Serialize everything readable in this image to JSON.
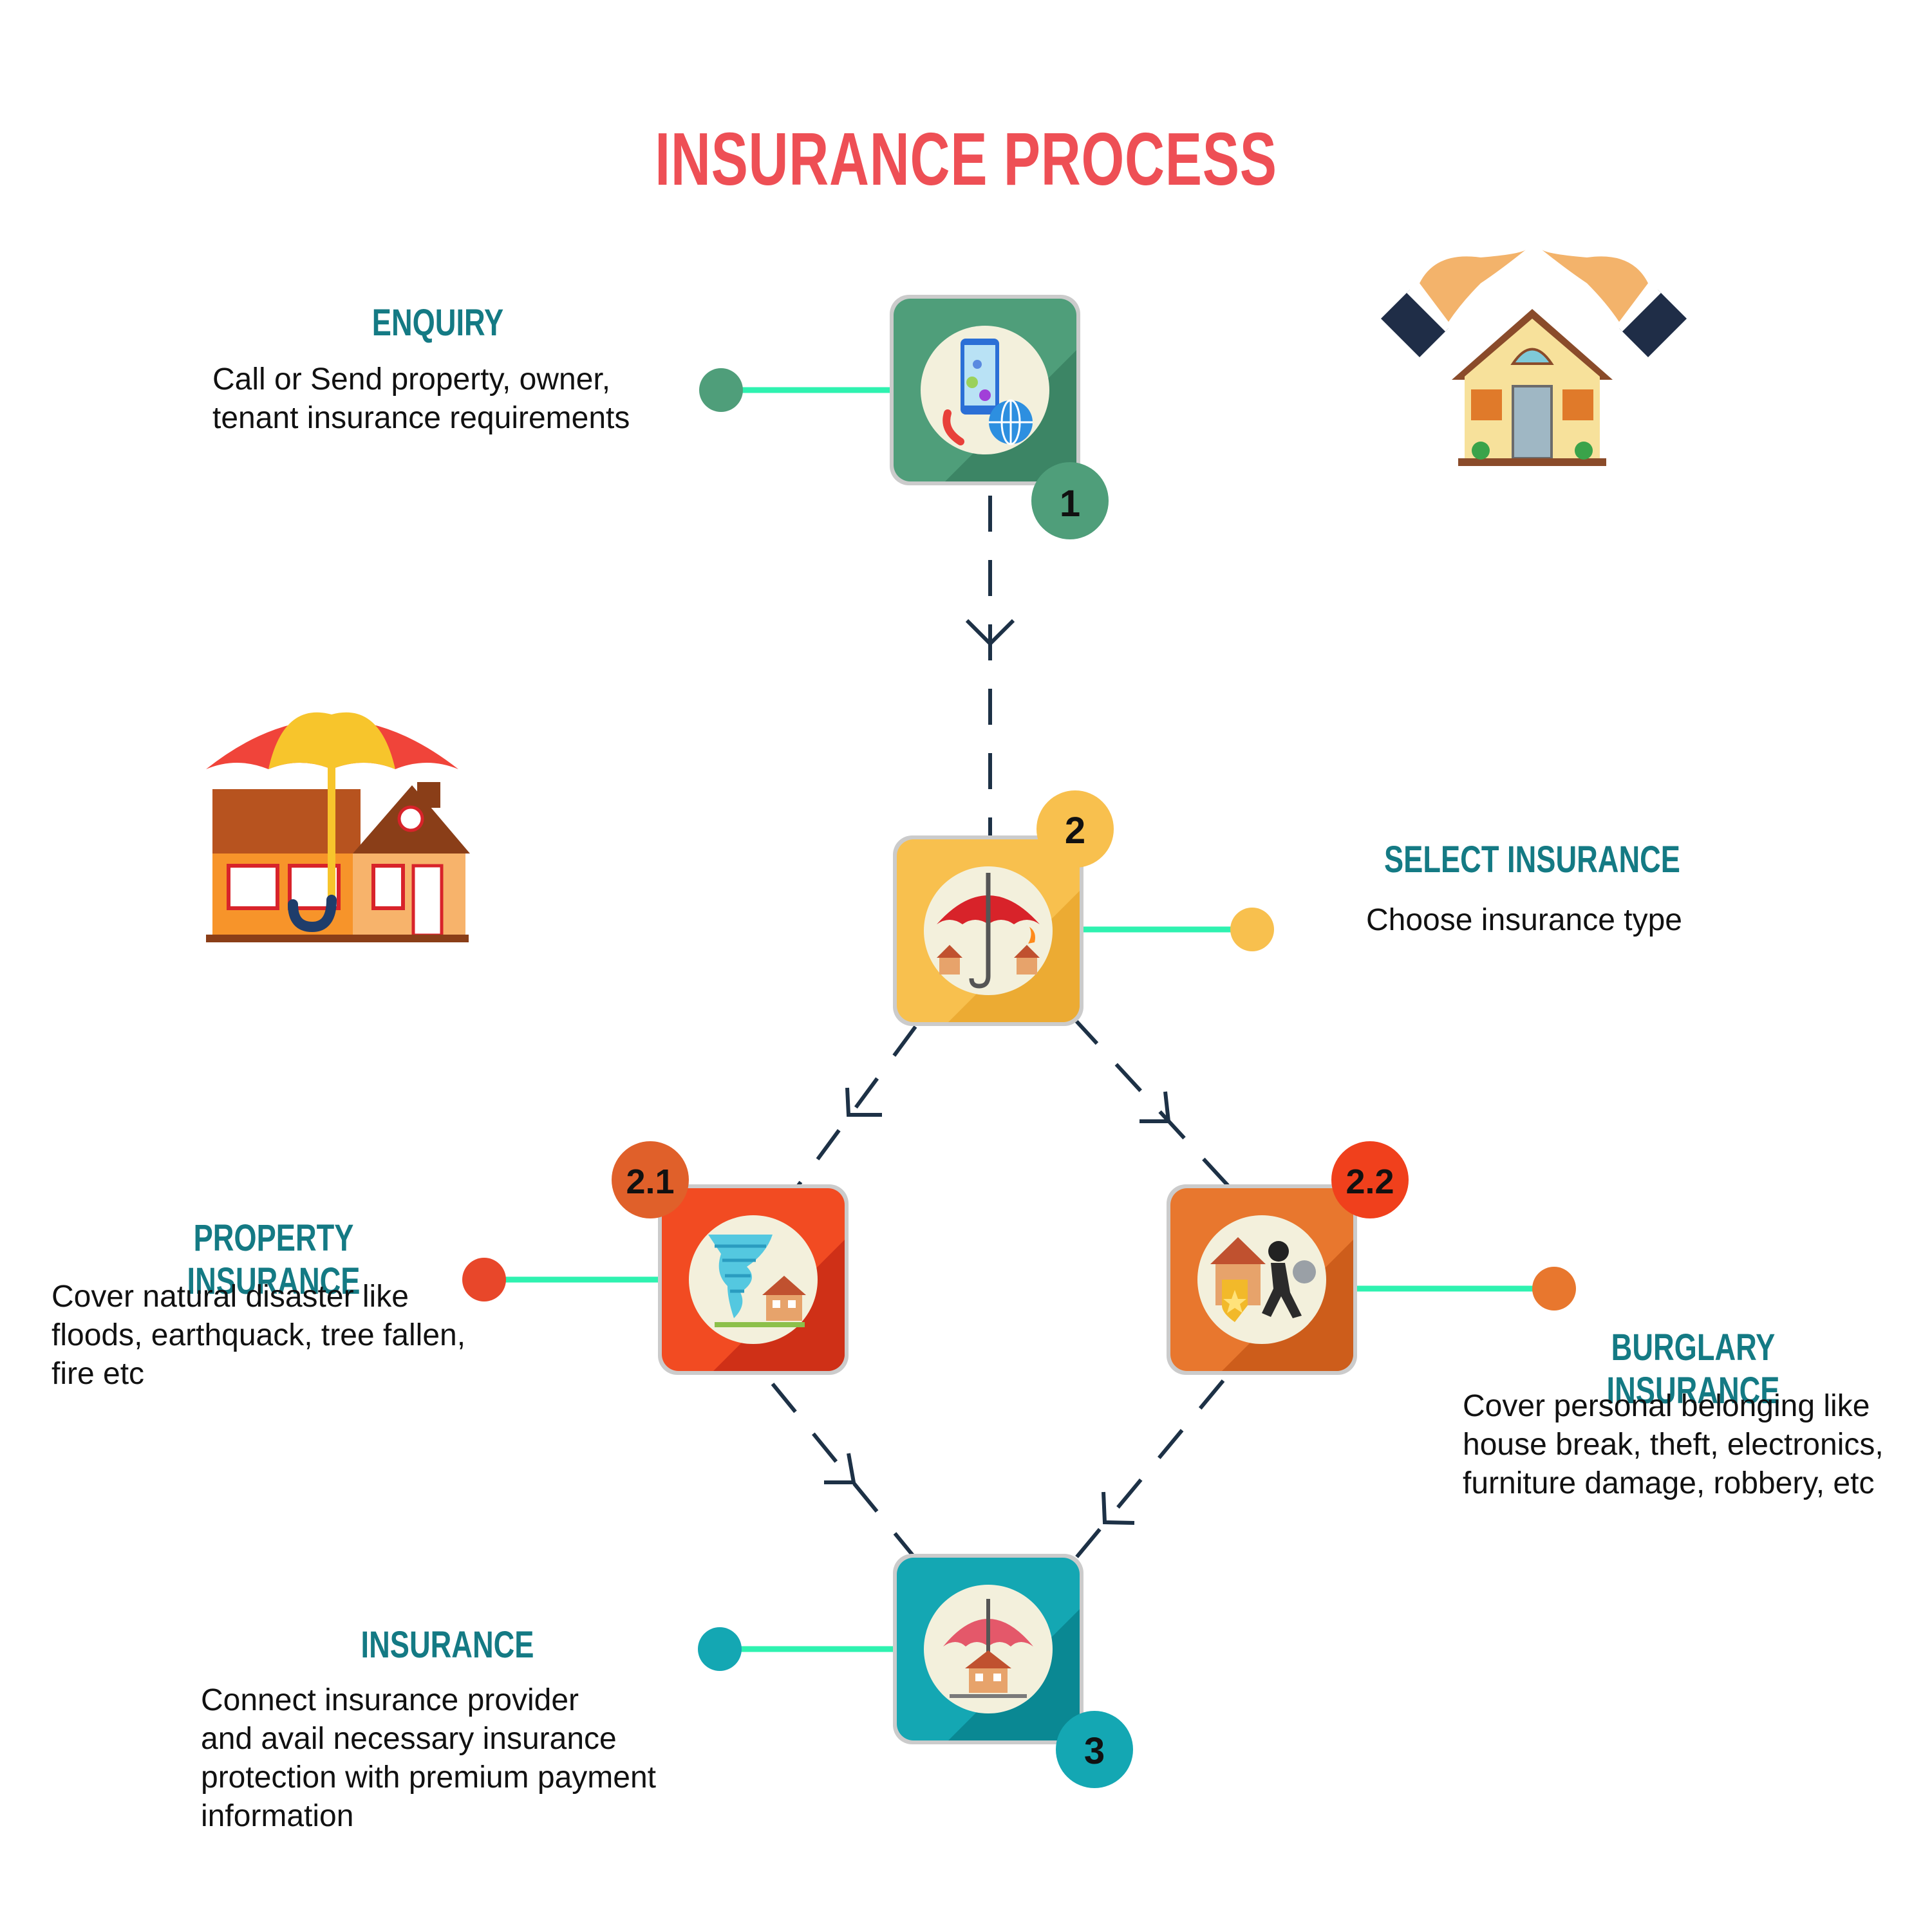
{
  "title": "INSURANCE PROCESS",
  "colors": {
    "title": "#ee4f55",
    "heading": "#147a84",
    "connector": "#2ef2b0",
    "arrow": "#1d3146",
    "step1": "#4f9e7a",
    "step2": "#f8c04e",
    "step2_1": "#e8472a",
    "step2_2": "#e8772e",
    "step3": "#14a7b3"
  },
  "steps": [
    {
      "id": "enquiry",
      "badge": "1",
      "heading": "ENQUIRY",
      "lines": [
        "Call or Send property, owner,",
        "tenant insurance requirements"
      ],
      "icon": "phone-globe-icon"
    },
    {
      "id": "select",
      "badge": "2",
      "heading": "SELECT INSURANCE",
      "lines": [
        "Choose insurance type"
      ],
      "icon": "umbrella-houses-icon"
    },
    {
      "id": "property",
      "badge": "2.1",
      "heading": "PROPERTY INSURANCE",
      "lines": [
        "Cover natural disaster like",
        "floods, earthquack, tree fallen,",
        "fire etc"
      ],
      "icon": "tornado-house-icon"
    },
    {
      "id": "burglary",
      "badge": "2.2",
      "heading": "BURGLARY INSURANCE",
      "lines": [
        "Cover personal belonging like",
        "house break, theft, electronics,",
        "furniture damage, robbery, etc"
      ],
      "icon": "burglar-shield-icon"
    },
    {
      "id": "insurance",
      "badge": "3",
      "heading": "INSURANCE",
      "lines": [
        "Connect insurance provider",
        "and avail necessary insurance",
        "protection with premium payment",
        "information"
      ],
      "icon": "umbrella-house-icon"
    }
  ],
  "illustrations": [
    "hands-protecting-house-illustration",
    "umbrella-over-house-illustration"
  ]
}
